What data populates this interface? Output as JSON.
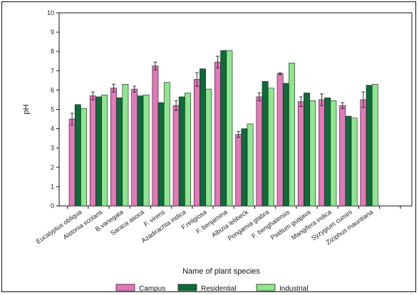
{
  "chart_data": {
    "type": "bar",
    "title": "",
    "xlabel": "Name of plant species",
    "ylabel": "pH",
    "ylim": [
      0,
      10
    ],
    "yticks": [
      0,
      1,
      2,
      3,
      4,
      5,
      6,
      7,
      8,
      9,
      10
    ],
    "grid": false,
    "legend_position": "bottom",
    "categories": [
      "Eucalyptus obliqua",
      "Alstonia scolaris",
      "B.variegata",
      "Saraca asoca",
      "F. virens",
      "Azadirachta indica",
      "F.religiosa",
      "F. benjamina",
      "Albizia lebbeck",
      "Pongamia glabra",
      "F. benghalensis",
      "Psidium guajava",
      "Mangifera indica",
      "Syzygium cumini",
      "Ziziphus mauritiana"
    ],
    "series": [
      {
        "name": "Campus",
        "color": "#e377b8",
        "values": [
          4.5,
          5.7,
          6.1,
          6.05,
          7.25,
          5.2,
          6.55,
          7.45,
          3.7,
          5.65,
          6.85,
          5.4,
          5.5,
          5.2,
          5.5
        ],
        "errors": [
          0.3,
          0.2,
          0.2,
          0.15,
          0.2,
          0.25,
          0.35,
          0.3,
          0.15,
          0.2,
          0.05,
          0.25,
          0.3,
          0.15,
          0.4
        ]
      },
      {
        "name": "Residential",
        "color": "#0e6b3a",
        "values": [
          5.25,
          5.65,
          5.6,
          5.7,
          5.35,
          5.65,
          7.1,
          8.05,
          4.0,
          6.45,
          6.35,
          5.85,
          5.6,
          4.65,
          6.25
        ]
      },
      {
        "name": "Industrial",
        "color": "#8ee68e",
        "values": [
          5.05,
          5.75,
          6.3,
          5.75,
          6.4,
          5.85,
          6.05,
          8.05,
          4.25,
          6.1,
          7.4,
          5.45,
          5.45,
          4.55,
          6.3
        ]
      }
    ]
  }
}
